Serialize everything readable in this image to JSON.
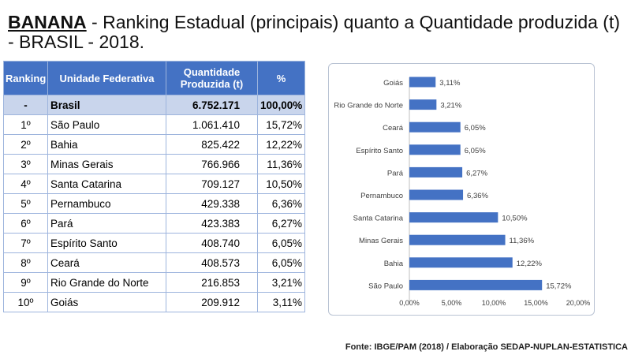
{
  "title": {
    "fruit": "BANANA",
    "rest": " - Ranking Estadual (principais) quanto a Quantidade produzida (t) - BRASIL - 2018."
  },
  "table": {
    "headers": [
      "Ranking",
      "Unidade Federativa",
      "Quantidade Produzida (t)",
      "%"
    ],
    "total": {
      "rank": "-",
      "uf": "Brasil",
      "qtd": "6.752.171",
      "pct": "100,00%"
    },
    "rows": [
      {
        "rank": "1º",
        "uf": "São Paulo",
        "qtd": "1.061.410",
        "pct": "15,72%"
      },
      {
        "rank": "2º",
        "uf": "Bahia",
        "qtd": "825.422",
        "pct": "12,22%"
      },
      {
        "rank": "3º",
        "uf": "Minas Gerais",
        "qtd": "766.966",
        "pct": "11,36%"
      },
      {
        "rank": "4º",
        "uf": "Santa Catarina",
        "qtd": "709.127",
        "pct": "10,50%"
      },
      {
        "rank": "5º",
        "uf": "Pernambuco",
        "qtd": "429.338",
        "pct": "6,36%"
      },
      {
        "rank": "6º",
        "uf": "Pará",
        "qtd": "423.383",
        "pct": "6,27%"
      },
      {
        "rank": "7º",
        "uf": "Espírito Santo",
        "qtd": "408.740",
        "pct": "6,05%"
      },
      {
        "rank": "8º",
        "uf": "Ceará",
        "qtd": "408.573",
        "pct": "6,05%"
      },
      {
        "rank": "9º",
        "uf": "Rio Grande do Norte",
        "qtd": "216.853",
        "pct": "3,21%"
      },
      {
        "rank": "10º",
        "uf": "Goiás",
        "qtd": "209.912",
        "pct": "3,11%"
      }
    ]
  },
  "chart_data": {
    "type": "bar",
    "orientation": "horizontal",
    "categories": [
      "Goiás",
      "Rio Grande do Norte",
      "Ceará",
      "Espírito Santo",
      "Pará",
      "Pernambuco",
      "Santa Catarina",
      "Minas Gerais",
      "Bahia",
      "São Paulo"
    ],
    "values": [
      3.11,
      3.21,
      6.05,
      6.05,
      6.27,
      6.36,
      10.5,
      11.36,
      12.22,
      15.72
    ],
    "value_labels": [
      "3,11%",
      "3,21%",
      "6,05%",
      "6,05%",
      "6,27%",
      "6,36%",
      "10,50%",
      "11,36%",
      "12,22%",
      "15,72%"
    ],
    "x_ticks": [
      "0,00%",
      "5,00%",
      "10,00%",
      "15,00%",
      "20,00%"
    ],
    "xlim": [
      0,
      20
    ],
    "grid": false,
    "bar_color": "#4472c4"
  },
  "source": "Fonte: IBGE/PAM (2018) / Elaboração SEDAP-NUPLAN-ESTATISTICA"
}
